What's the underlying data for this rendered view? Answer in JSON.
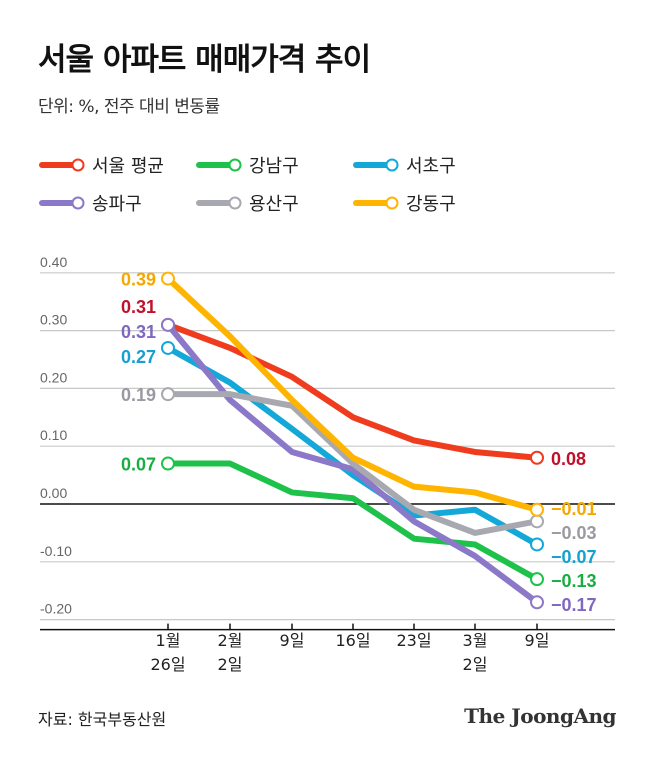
{
  "title": "서울 아파트 매매가격 추이",
  "subtitle": "단위: %, 전주 대비 변동률",
  "source": "자료: 한국부동산원",
  "logo": "The JoongAng",
  "chart_data": {
    "type": "line",
    "title": "서울 아파트 매매가격 추이",
    "ylim": [
      -0.2,
      0.4
    ],
    "yticks": [
      "0.40",
      "0.30",
      "0.20",
      "0.10",
      "0.00",
      "-0.10",
      "-0.20"
    ],
    "ytick_values": [
      0.4,
      0.3,
      0.2,
      0.1,
      0,
      -0.1,
      -0.2
    ],
    "grid": true,
    "legend": "top",
    "categories": [
      [
        "1월",
        "26일"
      ],
      [
        "2월",
        "2일"
      ],
      [
        "9일",
        ""
      ],
      [
        "16일",
        ""
      ],
      [
        "23일",
        ""
      ],
      [
        "3월",
        "2일"
      ],
      [
        "9일",
        ""
      ]
    ],
    "series": [
      {
        "name": "서울 평균",
        "color": "#f03c1e",
        "label_color": "#c0102a",
        "values": [
          0.31,
          0.27,
          0.22,
          0.15,
          0.11,
          0.09,
          0.08
        ],
        "start_label": "0.31",
        "end_label": "0.08"
      },
      {
        "name": "강남구",
        "color": "#1ec24a",
        "label_color": "#1aae42",
        "values": [
          0.07,
          0.07,
          0.02,
          0.01,
          -0.06,
          -0.07,
          -0.13
        ],
        "start_label": "0.07",
        "end_label": "−0.13"
      },
      {
        "name": "서초구",
        "color": "#14a8d8",
        "label_color": "#14a0d0",
        "values": [
          0.27,
          0.21,
          0.13,
          0.05,
          -0.02,
          -0.01,
          -0.07
        ],
        "start_label": "0.27",
        "end_label": "−0.07"
      },
      {
        "name": "송파구",
        "color": "#8c78c8",
        "label_color": "#8068c0",
        "values": [
          0.31,
          0.18,
          0.09,
          0.06,
          -0.03,
          -0.09,
          -0.17
        ],
        "start_label": "0.31",
        "end_label": "−0.17"
      },
      {
        "name": "용산구",
        "color": "#a8a8b0",
        "label_color": "#9a9aa2",
        "values": [
          0.19,
          0.19,
          0.17,
          0.07,
          -0.01,
          -0.05,
          -0.03
        ],
        "start_label": "0.19",
        "end_label": "−0.03"
      },
      {
        "name": "강동구",
        "color": "#ffb400",
        "label_color": "#f5a800",
        "values": [
          0.39,
          0.29,
          0.18,
          0.08,
          0.03,
          0.02,
          -0.01
        ],
        "start_label": "0.39",
        "end_label": "−0.01"
      }
    ]
  }
}
